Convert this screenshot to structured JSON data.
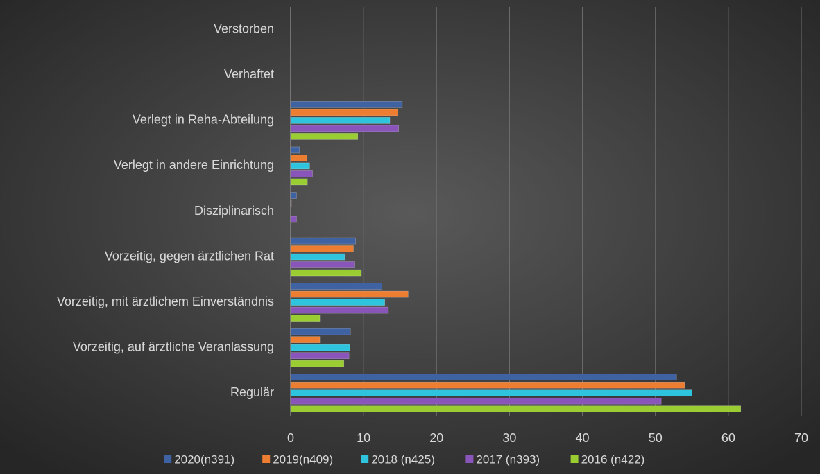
{
  "chart_data": {
    "type": "bar",
    "orientation": "horizontal",
    "categories": [
      "Verstorben",
      "Verhaftet",
      "Verlegt in Reha-Abteilung",
      "Verlegt in andere Einrichtung",
      "Disziplinarisch",
      "Vorzeitig, gegen ärztlichen Rat",
      "Vorzeitig, mit ärztlichem Einverständnis",
      "Vorzeitig, auf ärztliche Veranlassung",
      "Regulär"
    ],
    "series": [
      {
        "name": "2020(n391)",
        "color": "#3f62a3",
        "values": [
          0,
          0,
          15.3,
          1.2,
          0.8,
          8.9,
          12.5,
          8.2,
          52.9
        ]
      },
      {
        "name": "2019(n409)",
        "color": "#ed7d31",
        "values": [
          0,
          0,
          14.7,
          2.2,
          0.1,
          8.6,
          16.1,
          4.0,
          54
        ]
      },
      {
        "name": "2018 (n425)",
        "color": "#2ec4de",
        "values": [
          0,
          0,
          13.6,
          2.6,
          0,
          7.4,
          12.9,
          8.1,
          55
        ]
      },
      {
        "name": "2017 (n393)",
        "color": "#8a55ba",
        "values": [
          0,
          0,
          14.8,
          3.0,
          0.8,
          8.7,
          13.4,
          8.0,
          50.8
        ]
      },
      {
        "name": "2016 (n422)",
        "color": "#9acd32",
        "values": [
          0,
          0,
          9.2,
          2.3,
          0,
          9.7,
          4.0,
          7.3,
          61.7
        ]
      }
    ],
    "xlim": [
      0,
      70
    ],
    "xticks": [
      0,
      10,
      20,
      30,
      40,
      50,
      60,
      70
    ],
    "grid": true,
    "legend": "bottom"
  }
}
